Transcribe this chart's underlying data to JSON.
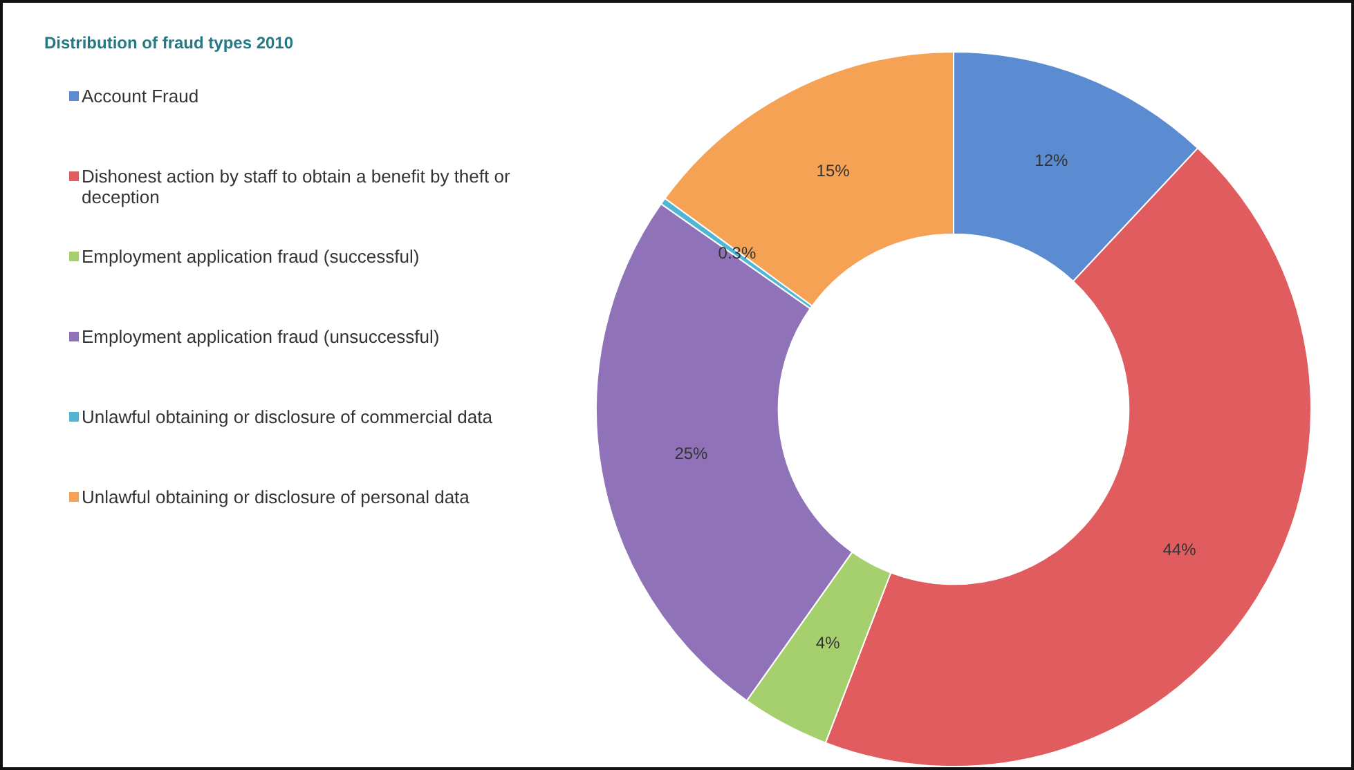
{
  "chart_data": {
    "type": "donut",
    "title": "Distribution of fraud types 2010",
    "categories": [
      "Account Fraud",
      "Dishonest action by staff to obtain a benefit by theft or deception",
      "Employment application fraud (successful)",
      "Employment application fraud (unsuccessful)",
      "Unlawful obtaining or disclosure of commercial data",
      "Unlawful obtaining or disclosure of personal data"
    ],
    "values": [
      12,
      44,
      4,
      25,
      0.3,
      15
    ],
    "colors": [
      "#5b8bd0",
      "#e05c5e",
      "#a6cf6e",
      "#8f72b8",
      "#4fb6d6",
      "#f5a255"
    ],
    "value_labels": [
      "12%",
      "44%",
      "4%",
      "25%",
      "0.3%",
      "15%"
    ],
    "legend": "left"
  }
}
